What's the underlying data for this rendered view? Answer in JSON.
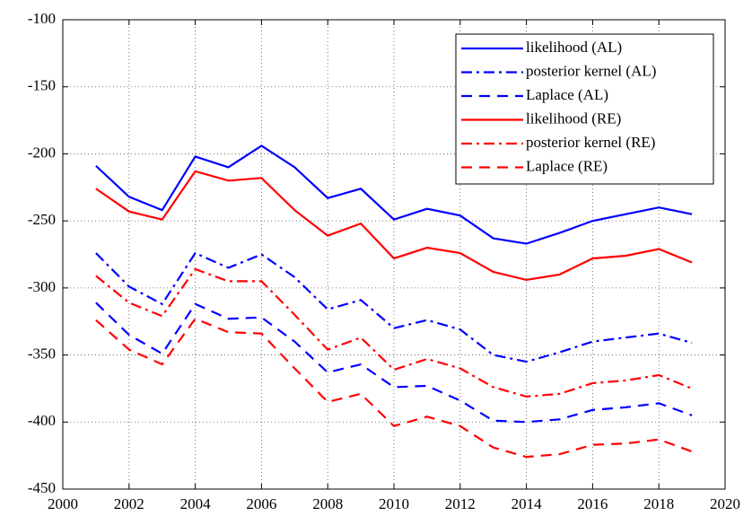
{
  "chart_data": {
    "type": "line",
    "x": [
      2001,
      2002,
      2003,
      2004,
      2005,
      2006,
      2007,
      2008,
      2009,
      2010,
      2011,
      2012,
      2013,
      2014,
      2015,
      2016,
      2017,
      2018,
      2019
    ],
    "series": [
      {
        "name": "likelihood (AL)",
        "color": "#0000ff",
        "dash": "solid",
        "values": [
          -209,
          -232,
          -242,
          -202,
          -210,
          -194,
          -210,
          -233,
          -226,
          -249,
          -241,
          -246,
          -263,
          -267,
          -259,
          -250,
          -245,
          -240,
          -245
        ]
      },
      {
        "name": "posterior kernel (AL)",
        "color": "#0000ff",
        "dash": "dashdot",
        "values": [
          -274,
          -299,
          -312,
          -274,
          -285,
          -275,
          -292,
          -316,
          -309,
          -330,
          -324,
          -331,
          -350,
          -355,
          -348,
          -340,
          -337,
          -334,
          -341
        ]
      },
      {
        "name": "Laplace (AL)",
        "color": "#0000ff",
        "dash": "dashed",
        "values": [
          -311,
          -335,
          -349,
          -312,
          -323,
          -322,
          -340,
          -363,
          -357,
          -374,
          -373,
          -384,
          -399,
          -400,
          -398,
          -391,
          -389,
          -386,
          -395
        ]
      },
      {
        "name": "likelihood (RE)",
        "color": "#ff0000",
        "dash": "solid",
        "values": [
          -226,
          -243,
          -249,
          -213,
          -220,
          -218,
          -242,
          -261,
          -252,
          -278,
          -270,
          -274,
          -288,
          -294,
          -290,
          -278,
          -276,
          -271,
          -281
        ]
      },
      {
        "name": "posterior kernel (RE)",
        "color": "#ff0000",
        "dash": "dashdot",
        "values": [
          -291,
          -311,
          -321,
          -286,
          -295,
          -295,
          -320,
          -346,
          -337,
          -361,
          -353,
          -360,
          -374,
          -381,
          -379,
          -371,
          -369,
          -365,
          -375
        ]
      },
      {
        "name": "Laplace (RE)",
        "color": "#ff0000",
        "dash": "dashed",
        "values": [
          -324,
          -346,
          -357,
          -323,
          -333,
          -334,
          -360,
          -385,
          -379,
          -403,
          -396,
          -403,
          -419,
          -426,
          -424,
          -417,
          -416,
          -413,
          -422
        ]
      }
    ],
    "xlim": [
      2000,
      2020
    ],
    "xticks": [
      2000,
      2002,
      2004,
      2006,
      2008,
      2010,
      2012,
      2014,
      2016,
      2018,
      2020
    ],
    "ylim": [
      -450,
      -100
    ],
    "yticks": [
      -450,
      -400,
      -350,
      -300,
      -250,
      -200,
      -150,
      -100
    ],
    "grid": true,
    "legend": "top-right"
  }
}
